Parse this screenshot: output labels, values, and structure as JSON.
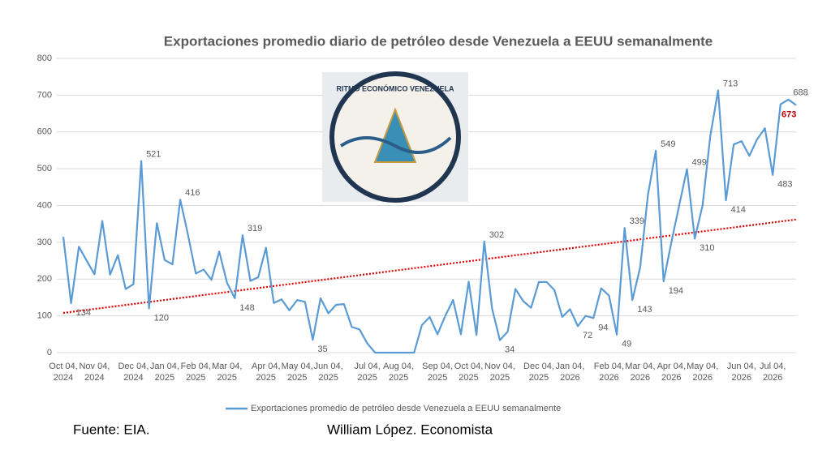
{
  "chart_data": {
    "type": "line",
    "title": "Exportaciones promedio diario de petróleo desde Venezuela a EEUU semanalmente",
    "categories": [
      "Oct 04, 2024",
      null,
      null,
      null,
      "Nov 04, 2024",
      null,
      null,
      null,
      null,
      "Dec 04, 2024",
      null,
      null,
      null,
      "Jan 04, 2025",
      null,
      null,
      null,
      "Feb 04, 2025",
      null,
      null,
      null,
      "Mar 04, 2025",
      null,
      null,
      null,
      null,
      "Apr 04, 2025",
      null,
      null,
      null,
      "May 04, 2025",
      null,
      null,
      null,
      "Jun 04, 2025",
      null,
      null,
      null,
      null,
      "Jul 04, 2025",
      null,
      null,
      null,
      "Aug 04, 2025",
      null,
      null,
      null,
      null,
      "Sep 04, 2025",
      null,
      null,
      null,
      "Oct 04, 2025",
      null,
      null,
      null,
      "Nov 04, 2025",
      null,
      null,
      null,
      null,
      "Dec 04, 2025",
      null,
      null,
      null,
      "Jan 04, 2026",
      null,
      null,
      null,
      null,
      "Feb 04, 2026",
      null,
      null,
      null,
      "Mar 04, 2026",
      null,
      null,
      null,
      "Apr 04, 2026",
      null,
      null,
      null,
      "May 04, 2026",
      null,
      null,
      null,
      null,
      "Jun 04, 2026",
      null,
      null,
      null,
      "Jul 04, 2026",
      null,
      null,
      null
    ],
    "series": [
      {
        "name": "Exportaciones promedio de petróleo desde Venezuela a EEUU semanalmente",
        "color": "#5b9bd5",
        "values": [
          315,
          134,
          288,
          250,
          213,
          358,
          212,
          265,
          173,
          186,
          521,
          120,
          352,
          252,
          240,
          416,
          320,
          215,
          226,
          198,
          275,
          190,
          148,
          319,
          195,
          205,
          285,
          135,
          145,
          115,
          143,
          138,
          35,
          148,
          107,
          130,
          132,
          70,
          63,
          25,
          0,
          0,
          0,
          0,
          0,
          0,
          75,
          97,
          50,
          100,
          143,
          50,
          193,
          48,
          302,
          120,
          34,
          57,
          173,
          140,
          122,
          192,
          192,
          170,
          97,
          118,
          72,
          100,
          94,
          175,
          155,
          49,
          339,
          143,
          232,
          430,
          549,
          194,
          300,
          400,
          499,
          310,
          400,
          590,
          713,
          414,
          566,
          575,
          535,
          580,
          610,
          483,
          675,
          688,
          673
        ],
        "value_labels": [
          null,
          "134",
          null,
          null,
          null,
          null,
          null,
          null,
          null,
          null,
          "521",
          "120",
          null,
          null,
          null,
          "416",
          null,
          null,
          null,
          null,
          null,
          null,
          "148",
          "319",
          null,
          null,
          null,
          null,
          null,
          null,
          null,
          null,
          "35",
          null,
          null,
          null,
          null,
          null,
          null,
          null,
          null,
          null,
          null,
          null,
          null,
          null,
          null,
          null,
          null,
          null,
          null,
          null,
          null,
          null,
          "302",
          null,
          "34",
          null,
          null,
          null,
          null,
          null,
          null,
          null,
          null,
          null,
          "72",
          null,
          "94",
          null,
          null,
          "49",
          "339",
          "143",
          null,
          null,
          "549",
          "194",
          null,
          null,
          "499",
          "310",
          null,
          null,
          "713",
          "414",
          null,
          null,
          null,
          null,
          null,
          "483",
          null,
          "688",
          "673"
        ]
      }
    ],
    "last_label_color": "#c00000",
    "trendline": {
      "color": "#e00000",
      "start": 108,
      "end": 362
    },
    "ylim": [
      0,
      800
    ],
    "yticks": [
      0,
      100,
      200,
      300,
      400,
      500,
      600,
      700,
      800
    ],
    "grid": true,
    "image_title": "RITMO ECONÓMICO VENEZUELA",
    "source": "Fuente: EIA.",
    "author": "William López. Economista"
  }
}
